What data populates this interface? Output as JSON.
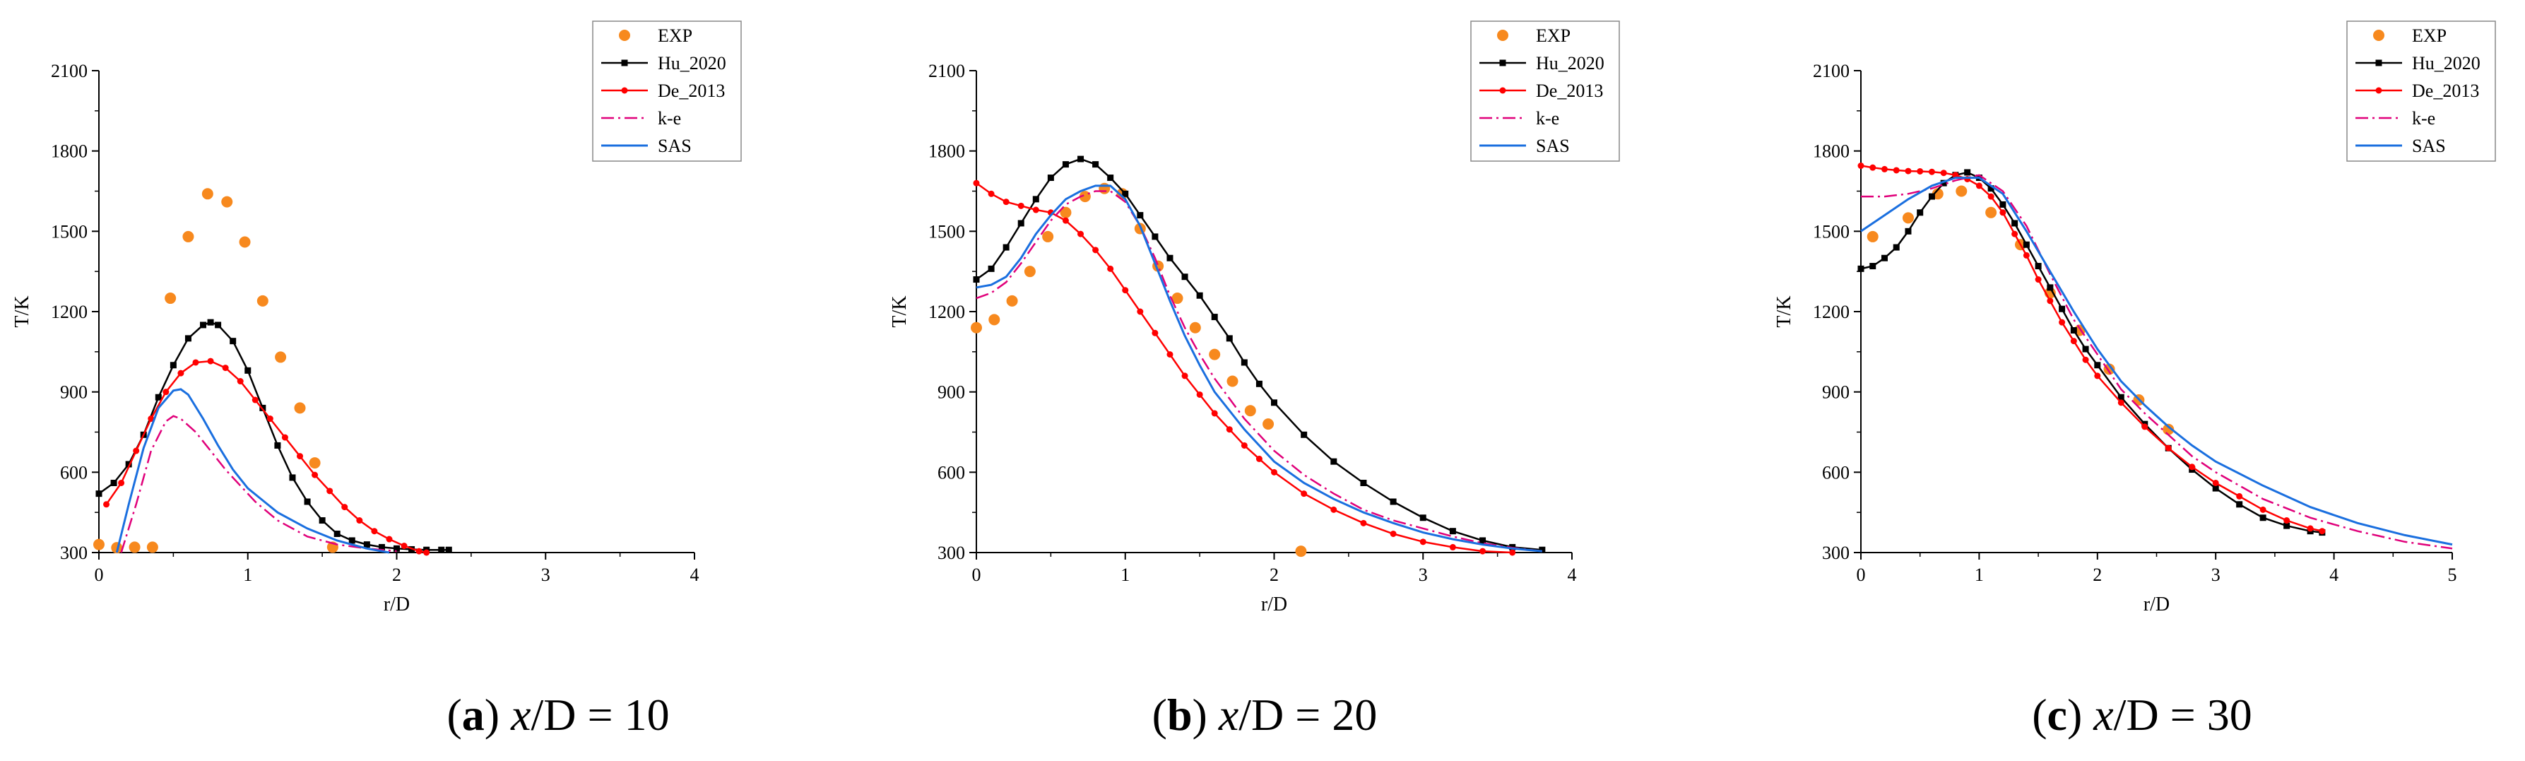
{
  "figure": {
    "captions": [
      {
        "letter": "a",
        "var": "x",
        "rest": "/D = 10"
      },
      {
        "letter": "b",
        "var": "x",
        "rest": "/D = 20"
      },
      {
        "letter": "c",
        "var": "x",
        "rest": "/D = 30"
      }
    ]
  },
  "chart_data": [
    {
      "type": "line",
      "title": "(a) x/D = 10",
      "xlabel": "r/D",
      "ylabel": "T/K",
      "xlim": [
        0,
        4
      ],
      "ylim": [
        300,
        2100
      ],
      "xticks": [
        0,
        1,
        2,
        3,
        4
      ],
      "yticks": [
        300,
        600,
        900,
        1200,
        1500,
        1800,
        2100
      ],
      "legend_position": "top-right",
      "series": [
        {
          "name": "EXP",
          "style": "markers",
          "color": "#f7891e",
          "x": [
            0.0,
            0.12,
            0.24,
            0.36,
            0.48,
            0.6,
            0.73,
            0.86,
            0.98,
            1.1,
            1.22,
            1.35,
            1.45,
            1.57
          ],
          "y": [
            330,
            318,
            320,
            320,
            1250,
            1480,
            1640,
            1610,
            1460,
            1240,
            1030,
            840,
            635,
            320
          ]
        },
        {
          "name": "Hu_2020",
          "style": "line-square",
          "color": "#000000",
          "x": [
            0,
            0.1,
            0.2,
            0.3,
            0.4,
            0.5,
            0.6,
            0.7,
            0.75,
            0.8,
            0.9,
            1.0,
            1.1,
            1.2,
            1.3,
            1.4,
            1.5,
            1.6,
            1.7,
            1.8,
            1.9,
            2.0,
            2.1,
            2.2,
            2.3,
            2.35
          ],
          "y": [
            520,
            560,
            630,
            740,
            880,
            1000,
            1100,
            1150,
            1160,
            1150,
            1090,
            980,
            840,
            700,
            580,
            490,
            420,
            370,
            345,
            330,
            320,
            315,
            312,
            310,
            310,
            310
          ]
        },
        {
          "name": "De_2013",
          "style": "line-dot",
          "color": "#ff0000",
          "x": [
            0.05,
            0.15,
            0.25,
            0.35,
            0.45,
            0.55,
            0.65,
            0.75,
            0.85,
            0.95,
            1.05,
            1.15,
            1.25,
            1.35,
            1.45,
            1.55,
            1.65,
            1.75,
            1.85,
            1.95,
            2.05,
            2.15,
            2.2
          ],
          "y": [
            480,
            560,
            680,
            800,
            900,
            970,
            1010,
            1015,
            990,
            940,
            870,
            800,
            730,
            660,
            590,
            530,
            470,
            420,
            380,
            350,
            325,
            305,
            300
          ]
        },
        {
          "name": "k-e",
          "style": "dashdot",
          "color": "#e0007a",
          "x": [
            0.15,
            0.25,
            0.35,
            0.45,
            0.5,
            0.55,
            0.65,
            0.75,
            0.85,
            0.95,
            1.05,
            1.2,
            1.4,
            1.6,
            1.8,
            2.0
          ],
          "y": [
            300,
            480,
            680,
            790,
            810,
            800,
            750,
            680,
            610,
            550,
            490,
            420,
            360,
            330,
            315,
            305
          ]
        },
        {
          "name": "SAS",
          "style": "solid",
          "color": "#1a6fdf",
          "x": [
            0.12,
            0.2,
            0.3,
            0.4,
            0.5,
            0.55,
            0.6,
            0.7,
            0.8,
            0.9,
            1.0,
            1.2,
            1.4,
            1.6,
            1.8,
            1.95
          ],
          "y": [
            300,
            480,
            690,
            840,
            905,
            910,
            890,
            800,
            700,
            610,
            540,
            450,
            390,
            345,
            315,
            300
          ]
        }
      ]
    },
    {
      "type": "line",
      "title": "(b) x/D = 20",
      "xlabel": "r/D",
      "ylabel": "T/K",
      "xlim": [
        0,
        4
      ],
      "ylim": [
        300,
        2100
      ],
      "xticks": [
        0,
        1,
        2,
        3,
        4
      ],
      "yticks": [
        300,
        600,
        900,
        1200,
        1500,
        1800,
        2100
      ],
      "legend_position": "top-right",
      "series": [
        {
          "name": "EXP",
          "style": "markers",
          "color": "#f7891e",
          "x": [
            0.0,
            0.12,
            0.24,
            0.36,
            0.48,
            0.6,
            0.73,
            0.86,
            0.98,
            1.1,
            1.22,
            1.35,
            1.47,
            1.6,
            1.72,
            1.84,
            1.96,
            2.18
          ],
          "y": [
            1140,
            1170,
            1240,
            1350,
            1480,
            1570,
            1630,
            1660,
            1640,
            1510,
            1370,
            1250,
            1140,
            1040,
            940,
            830,
            780,
            305
          ]
        },
        {
          "name": "Hu_2020",
          "style": "line-square",
          "color": "#000000",
          "x": [
            0.0,
            0.1,
            0.2,
            0.3,
            0.4,
            0.5,
            0.6,
            0.7,
            0.8,
            0.9,
            1.0,
            1.1,
            1.2,
            1.3,
            1.4,
            1.5,
            1.6,
            1.7,
            1.8,
            1.9,
            2.0,
            2.2,
            2.4,
            2.6,
            2.8,
            3.0,
            3.2,
            3.4,
            3.6,
            3.8
          ],
          "y": [
            1320,
            1360,
            1440,
            1530,
            1620,
            1700,
            1750,
            1770,
            1750,
            1700,
            1640,
            1560,
            1480,
            1400,
            1330,
            1260,
            1180,
            1100,
            1010,
            930,
            860,
            740,
            640,
            560,
            490,
            430,
            380,
            345,
            320,
            310
          ]
        },
        {
          "name": "De_2013",
          "style": "line-dot",
          "color": "#ff0000",
          "x": [
            0.0,
            0.1,
            0.2,
            0.3,
            0.4,
            0.5,
            0.6,
            0.7,
            0.8,
            0.9,
            1.0,
            1.1,
            1.2,
            1.3,
            1.4,
            1.5,
            1.6,
            1.7,
            1.8,
            1.9,
            2.0,
            2.2,
            2.4,
            2.6,
            2.8,
            3.0,
            3.2,
            3.4,
            3.6
          ],
          "y": [
            1680,
            1640,
            1610,
            1595,
            1580,
            1570,
            1540,
            1490,
            1430,
            1360,
            1280,
            1200,
            1120,
            1040,
            960,
            890,
            820,
            760,
            700,
            650,
            600,
            520,
            460,
            410,
            370,
            340,
            320,
            305,
            300
          ]
        },
        {
          "name": "k-e",
          "style": "dashdot",
          "color": "#e0007a",
          "x": [
            0.0,
            0.1,
            0.2,
            0.3,
            0.4,
            0.5,
            0.6,
            0.7,
            0.8,
            0.9,
            1.0,
            1.1,
            1.2,
            1.3,
            1.4,
            1.5,
            1.6,
            1.8,
            2.0,
            2.2,
            2.4,
            2.6,
            2.8,
            3.0,
            3.2,
            3.4,
            3.6,
            3.8
          ],
          "y": [
            1250,
            1270,
            1310,
            1380,
            1460,
            1540,
            1600,
            1630,
            1650,
            1650,
            1610,
            1520,
            1400,
            1260,
            1140,
            1040,
            950,
            800,
            680,
            590,
            520,
            460,
            420,
            390,
            360,
            335,
            318,
            305
          ]
        },
        {
          "name": "SAS",
          "style": "solid",
          "color": "#1a6fdf",
          "x": [
            0.0,
            0.1,
            0.2,
            0.3,
            0.4,
            0.5,
            0.6,
            0.7,
            0.8,
            0.9,
            1.0,
            1.1,
            1.2,
            1.3,
            1.4,
            1.5,
            1.6,
            1.8,
            2.0,
            2.2,
            2.4,
            2.6,
            2.8,
            3.0,
            3.2,
            3.4,
            3.6,
            3.8
          ],
          "y": [
            1290,
            1300,
            1330,
            1400,
            1490,
            1560,
            1620,
            1650,
            1670,
            1670,
            1620,
            1520,
            1380,
            1240,
            1110,
            1000,
            900,
            760,
            640,
            560,
            500,
            450,
            410,
            375,
            350,
            330,
            315,
            305
          ]
        }
      ]
    },
    {
      "type": "line",
      "title": "(c) x/D = 30",
      "xlabel": "r/D",
      "ylabel": "T/K",
      "xlim": [
        0,
        5
      ],
      "ylim": [
        300,
        2100
      ],
      "xticks": [
        0,
        1,
        2,
        3,
        4,
        5
      ],
      "yticks": [
        300,
        600,
        900,
        1200,
        1500,
        1800,
        2100
      ],
      "legend_position": "top-right",
      "series": [
        {
          "name": "EXP",
          "style": "markers",
          "color": "#f7891e",
          "x": [
            0.1,
            0.4,
            0.65,
            0.85,
            1.1,
            1.35,
            1.6,
            1.85,
            2.1,
            2.35,
            2.6
          ],
          "y": [
            1480,
            1550,
            1640,
            1650,
            1570,
            1450,
            1270,
            1130,
            985,
            870,
            760
          ]
        },
        {
          "name": "Hu_2020",
          "style": "line-square",
          "color": "#000000",
          "x": [
            0.0,
            0.1,
            0.2,
            0.3,
            0.4,
            0.5,
            0.6,
            0.7,
            0.8,
            0.9,
            1.0,
            1.1,
            1.2,
            1.3,
            1.4,
            1.5,
            1.6,
            1.7,
            1.8,
            1.9,
            2.0,
            2.2,
            2.4,
            2.6,
            2.8,
            3.0,
            3.2,
            3.4,
            3.6,
            3.8,
            3.9
          ],
          "y": [
            1360,
            1370,
            1400,
            1440,
            1500,
            1570,
            1630,
            1680,
            1710,
            1720,
            1700,
            1660,
            1600,
            1530,
            1450,
            1370,
            1290,
            1210,
            1130,
            1060,
            1000,
            880,
            780,
            690,
            610,
            540,
            480,
            430,
            400,
            380,
            375
          ]
        },
        {
          "name": "De_2013",
          "style": "line-dot",
          "color": "#ff0000",
          "x": [
            0.0,
            0.1,
            0.2,
            0.3,
            0.4,
            0.5,
            0.6,
            0.7,
            0.8,
            0.9,
            1.0,
            1.1,
            1.2,
            1.3,
            1.4,
            1.5,
            1.6,
            1.7,
            1.8,
            1.9,
            2.0,
            2.2,
            2.4,
            2.6,
            2.8,
            3.0,
            3.2,
            3.4,
            3.6,
            3.8,
            3.9
          ],
          "y": [
            1745,
            1738,
            1732,
            1728,
            1725,
            1724,
            1722,
            1718,
            1710,
            1695,
            1670,
            1630,
            1570,
            1490,
            1410,
            1320,
            1240,
            1160,
            1090,
            1020,
            960,
            860,
            770,
            690,
            620,
            560,
            510,
            460,
            420,
            390,
            380
          ]
        },
        {
          "name": "k-e",
          "style": "dashdot",
          "color": "#e0007a",
          "x": [
            0.0,
            0.2,
            0.4,
            0.6,
            0.8,
            1.0,
            1.2,
            1.4,
            1.6,
            1.8,
            2.0,
            2.2,
            2.4,
            2.6,
            2.8,
            3.0,
            3.4,
            3.8,
            4.2,
            4.6,
            5.0
          ],
          "y": [
            1630,
            1630,
            1640,
            1660,
            1690,
            1710,
            1650,
            1520,
            1340,
            1170,
            1040,
            910,
            820,
            740,
            660,
            600,
            500,
            430,
            380,
            340,
            315
          ]
        },
        {
          "name": "SAS",
          "style": "solid",
          "color": "#1a6fdf",
          "x": [
            0.0,
            0.2,
            0.4,
            0.6,
            0.8,
            1.0,
            1.2,
            1.4,
            1.6,
            1.8,
            2.0,
            2.2,
            2.4,
            2.6,
            2.8,
            3.0,
            3.4,
            3.8,
            4.2,
            4.6,
            5.0
          ],
          "y": [
            1500,
            1560,
            1620,
            1670,
            1700,
            1700,
            1640,
            1500,
            1350,
            1200,
            1060,
            940,
            850,
            770,
            700,
            640,
            550,
            470,
            410,
            365,
            330
          ]
        }
      ]
    }
  ]
}
